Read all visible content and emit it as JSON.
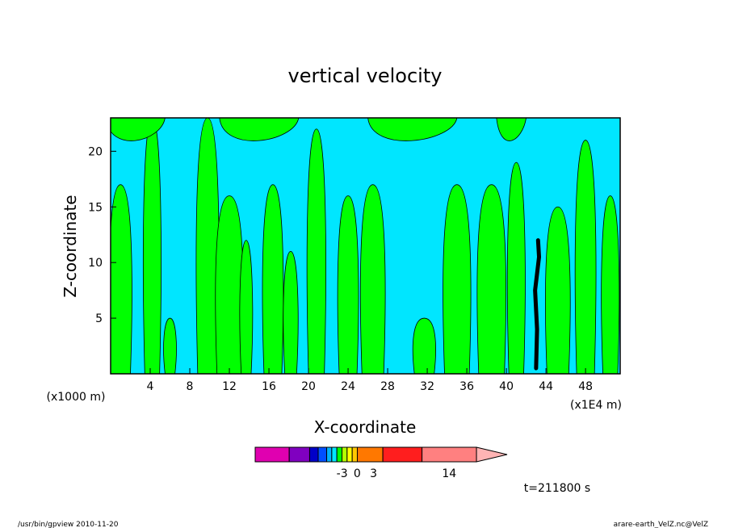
{
  "chart_data": {
    "type": "heatmap",
    "title": "vertical velocity",
    "xlabel": "X-coordinate",
    "ylabel": "Z-coordinate",
    "x_unit": "(x1000 m)",
    "x_scale_note": "(x1E4 m)",
    "xlim": [
      0,
      51.5
    ],
    "ylim": [
      0,
      23
    ],
    "x_ticks": [
      4,
      8,
      12,
      16,
      20,
      24,
      28,
      32,
      36,
      40,
      44,
      48
    ],
    "y_ticks": [
      5,
      10,
      15,
      20
    ],
    "x_tick_labels": [
      "4",
      "8",
      "12",
      "16",
      "20",
      "24",
      "28",
      "32",
      "36",
      "40",
      "44",
      "48"
    ],
    "y_tick_labels": [
      "5",
      "10",
      "15",
      "20"
    ],
    "background_color": "#00e6ff",
    "updraft_color": "#00ff00",
    "strong_color": "#000000",
    "updraft_columns": [
      {
        "x": 1.0,
        "width": 2.0,
        "top": 17
      },
      {
        "x": 4.2,
        "width": 1.5,
        "top": 23
      },
      {
        "x": 6.0,
        "width": 1.0,
        "top": 5
      },
      {
        "x": 9.8,
        "width": 2.0,
        "top": 23
      },
      {
        "x": 12.0,
        "width": 2.5,
        "top": 16
      },
      {
        "x": 13.7,
        "width": 1.0,
        "top": 12
      },
      {
        "x": 16.4,
        "width": 1.8,
        "top": 17
      },
      {
        "x": 18.2,
        "width": 1.2,
        "top": 11
      },
      {
        "x": 20.8,
        "width": 1.6,
        "top": 22
      },
      {
        "x": 24.0,
        "width": 1.8,
        "top": 16
      },
      {
        "x": 26.5,
        "width": 2.2,
        "top": 17
      },
      {
        "x": 31.7,
        "width": 2.0,
        "top": 5
      },
      {
        "x": 35.0,
        "width": 2.5,
        "top": 17
      },
      {
        "x": 38.5,
        "width": 2.6,
        "top": 17
      },
      {
        "x": 41.0,
        "width": 1.5,
        "top": 19
      },
      {
        "x": 45.2,
        "width": 2.2,
        "top": 15
      },
      {
        "x": 48.0,
        "width": 1.8,
        "top": 21
      },
      {
        "x": 50.5,
        "width": 1.5,
        "top": 16
      }
    ],
    "updraft_top_band": [
      {
        "x": 2.5,
        "width": 6.0
      },
      {
        "x": 15.0,
        "width": 8.0
      },
      {
        "x": 30.5,
        "width": 9.0
      },
      {
        "x": 40.5,
        "width": 3.0
      }
    ],
    "strong_updraft_path": [
      {
        "x": 43.0,
        "z": 0.5
      },
      {
        "x": 43.1,
        "z": 4.0
      },
      {
        "x": 42.9,
        "z": 7.5
      },
      {
        "x": 43.3,
        "z": 10.5
      },
      {
        "x": 43.2,
        "z": 12.0
      }
    ],
    "colorbar": {
      "colors": [
        "#e000b0",
        "#8000c0",
        "#0000c8",
        "#0050ff",
        "#00b4ff",
        "#00e6ff",
        "#00ff00",
        "#b4ff00",
        "#ffff00",
        "#ffc800",
        "#ff7800",
        "#ff1e1e",
        "#ff8080",
        "#ffb4b4"
      ],
      "widths": [
        2,
        1.2,
        0.5,
        0.5,
        0.3,
        0.3,
        0.3,
        0.3,
        0.3,
        0.3,
        1.5,
        2.3,
        3.2,
        1.8
      ],
      "labels": [
        "-3",
        "0",
        "3",
        "14"
      ],
      "label_positions": [
        0.345,
        0.405,
        0.47,
        0.77
      ]
    },
    "time_label": "t=211800 s"
  },
  "footer": {
    "left_text": "/usr/bin/gpview  2010-11-20",
    "right_text": "arare-earth_VelZ.nc@VelZ"
  }
}
